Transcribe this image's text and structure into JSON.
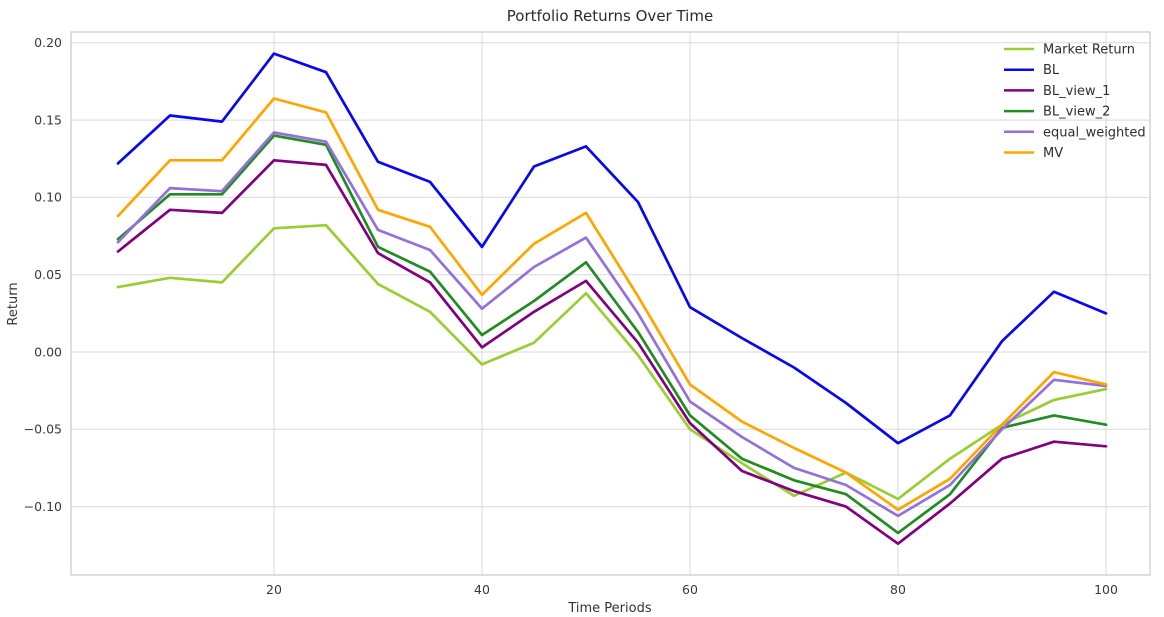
{
  "chart_data": {
    "type": "line",
    "title": "Portfolio Returns Over Time",
    "xlabel": "Time Periods",
    "ylabel": "Return",
    "grid": true,
    "legend_position": "upper right",
    "xlim": [
      0.25,
      104.75
    ],
    "ylim": [
      -0.1445,
      0.207
    ],
    "x_ticks": [
      20,
      40,
      60,
      80,
      100
    ],
    "x_tick_labels": [
      "20",
      "40",
      "60",
      "80",
      "100"
    ],
    "y_ticks": [
      0.2,
      0.15,
      0.1,
      0.05,
      0.0,
      -0.05,
      -0.1
    ],
    "y_tick_labels": [
      "0.20",
      "0.15",
      "0.10",
      "0.05",
      "0.00",
      "−0.05",
      "−0.10"
    ],
    "x": [
      5,
      10,
      15,
      20,
      25,
      30,
      35,
      40,
      45,
      50,
      55,
      60,
      65,
      70,
      75,
      80,
      85,
      90,
      95,
      100
    ],
    "series": [
      {
        "name": "Market Return",
        "color": "#9ACD32",
        "values": [
          0.042,
          0.048,
          0.045,
          0.08,
          0.082,
          0.044,
          0.026,
          -0.008,
          0.006,
          0.038,
          -0.002,
          -0.05,
          -0.072,
          -0.093,
          -0.078,
          -0.095,
          -0.069,
          -0.047,
          -0.031,
          -0.024
        ]
      },
      {
        "name": "BL",
        "color": "#0808EE",
        "values": [
          0.122,
          0.153,
          0.149,
          0.193,
          0.181,
          0.123,
          0.11,
          0.068,
          0.12,
          0.133,
          0.097,
          0.029,
          0.009,
          -0.01,
          -0.033,
          -0.059,
          -0.041,
          0.007,
          0.039,
          0.025
        ]
      },
      {
        "name": "BL_view_1",
        "color": "#800080",
        "values": [
          0.065,
          0.092,
          0.09,
          0.124,
          0.121,
          0.064,
          0.045,
          0.003,
          0.026,
          0.046,
          0.006,
          -0.046,
          -0.077,
          -0.09,
          -0.1,
          -0.124,
          -0.098,
          -0.069,
          -0.058,
          -0.061
        ]
      },
      {
        "name": "BL_view_2",
        "color": "#228B22",
        "values": [
          0.073,
          0.102,
          0.102,
          0.14,
          0.134,
          0.068,
          0.052,
          0.011,
          0.033,
          0.058,
          0.013,
          -0.041,
          -0.069,
          -0.083,
          -0.092,
          -0.117,
          -0.092,
          -0.049,
          -0.041,
          -0.047
        ]
      },
      {
        "name": "equal_weighted",
        "color": "#9370DB",
        "values": [
          0.071,
          0.106,
          0.104,
          0.142,
          0.136,
          0.079,
          0.066,
          0.028,
          0.055,
          0.074,
          0.025,
          -0.032,
          -0.055,
          -0.075,
          -0.086,
          -0.106,
          -0.086,
          -0.05,
          -0.018,
          -0.022
        ]
      },
      {
        "name": "MV",
        "color": "#FFA500",
        "values": [
          0.088,
          0.124,
          0.124,
          0.164,
          0.155,
          0.092,
          0.081,
          0.037,
          0.07,
          0.09,
          0.036,
          -0.021,
          -0.045,
          -0.062,
          -0.078,
          -0.102,
          -0.082,
          -0.047,
          -0.013,
          -0.021
        ]
      }
    ],
    "style": {
      "grid_color": "#d9d9d9",
      "spine_color": "#c9c9c9",
      "background": "#ffffff",
      "line_width": 2.7
    }
  }
}
